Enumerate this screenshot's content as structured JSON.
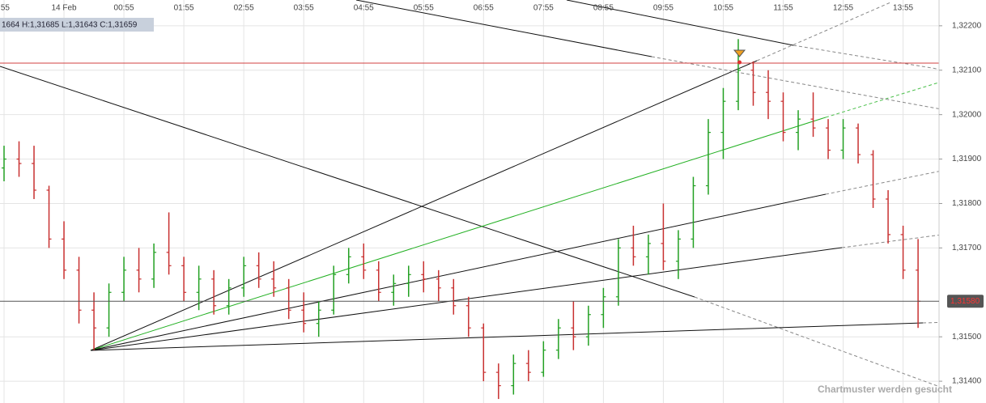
{
  "chart_data": {
    "type": "ohlc",
    "info": "1664  H:1,31685  L:1,31643  C:1,31659",
    "watermark": "Chartmuster werden gesucht",
    "grid": true,
    "up_color": "#22a022",
    "down_color": "#c83030",
    "xlim": [
      -0.27,
      62.4
    ],
    "xticks": [
      {
        "value": 0,
        "label": ":55"
      },
      {
        "value": 4,
        "label": "14 Feb"
      },
      {
        "value": 8,
        "label": "00:55"
      },
      {
        "value": 12,
        "label": "01:55"
      },
      {
        "value": 16,
        "label": "02:55"
      },
      {
        "value": 20,
        "label": "03:55"
      },
      {
        "value": 24,
        "label": "04:55"
      },
      {
        "value": 28,
        "label": "05:55"
      },
      {
        "value": 32,
        "label": "06:55"
      },
      {
        "value": 36,
        "label": "07:55"
      },
      {
        "value": 40,
        "label": "08:55"
      },
      {
        "value": 44,
        "label": "09:55"
      },
      {
        "value": 48,
        "label": "10:55"
      },
      {
        "value": 52,
        "label": "11:55"
      },
      {
        "value": 56,
        "label": "12:55"
      },
      {
        "value": 60,
        "label": "13:55"
      }
    ],
    "ylim": [
      1.31351,
      1.32258
    ],
    "yticks": [
      {
        "value": 1.314,
        "label": "1,31400"
      },
      {
        "value": 1.315,
        "label": "1,31500"
      },
      {
        "value": 1.317,
        "label": "1,31700"
      },
      {
        "value": 1.318,
        "label": "1,31800"
      },
      {
        "value": 1.319,
        "label": "1,31900"
      },
      {
        "value": 1.32,
        "label": "1,32000"
      },
      {
        "value": 1.321,
        "label": "1,32100"
      },
      {
        "value": 1.322,
        "label": "1,32200"
      }
    ],
    "current_price": {
      "value": 1.3158,
      "label": "1,31580"
    },
    "bars": [
      [
        1.3188,
        1.3193,
        1.3185,
        1.319
      ],
      [
        1.319,
        1.3194,
        1.3186,
        1.3189
      ],
      [
        1.3189,
        1.3193,
        1.3181,
        1.3183
      ],
      [
        1.3183,
        1.3184,
        1.317,
        1.3172
      ],
      [
        1.3172,
        1.3176,
        1.3163,
        1.3165
      ],
      [
        1.3165,
        1.3168,
        1.3153,
        1.3156
      ],
      [
        1.3156,
        1.316,
        1.3147,
        1.3152
      ],
      [
        1.3152,
        1.3162,
        1.315,
        1.316
      ],
      [
        1.316,
        1.3168,
        1.3158,
        1.3165
      ],
      [
        1.3165,
        1.317,
        1.316,
        1.3163
      ],
      [
        1.3163,
        1.3171,
        1.3161,
        1.3169
      ],
      [
        1.3169,
        1.3178,
        1.3164,
        1.3166
      ],
      [
        1.3166,
        1.3168,
        1.3158,
        1.316
      ],
      [
        1.316,
        1.3166,
        1.3156,
        1.3163
      ],
      [
        1.3163,
        1.3165,
        1.3155,
        1.3157
      ],
      [
        1.3157,
        1.3163,
        1.3155,
        1.3161
      ],
      [
        1.3161,
        1.3168,
        1.3159,
        1.3166
      ],
      [
        1.3166,
        1.3169,
        1.3161,
        1.3163
      ],
      [
        1.3163,
        1.3167,
        1.3159,
        1.3161
      ],
      [
        1.3161,
        1.3163,
        1.3154,
        1.3156
      ],
      [
        1.3156,
        1.316,
        1.3151,
        1.3153
      ],
      [
        1.3153,
        1.3158,
        1.315,
        1.3156
      ],
      [
        1.3156,
        1.3166,
        1.3155,
        1.3164
      ],
      [
        1.3164,
        1.317,
        1.3162,
        1.3168
      ],
      [
        1.3168,
        1.3171,
        1.3163,
        1.3165
      ],
      [
        1.3165,
        1.3167,
        1.3158,
        1.316
      ],
      [
        1.316,
        1.3164,
        1.3157,
        1.3162
      ],
      [
        1.3162,
        1.3166,
        1.3159,
        1.3164
      ],
      [
        1.3164,
        1.3167,
        1.316,
        1.3163
      ],
      [
        1.3163,
        1.3165,
        1.3158,
        1.3161
      ],
      [
        1.3161,
        1.3163,
        1.3155,
        1.3157
      ],
      [
        1.3157,
        1.3159,
        1.315,
        1.3152
      ],
      [
        1.3152,
        1.3153,
        1.314,
        1.3142
      ],
      [
        1.3142,
        1.3144,
        1.3136,
        1.3139
      ],
      [
        1.3139,
        1.3146,
        1.3137,
        1.3144
      ],
      [
        1.3144,
        1.3147,
        1.314,
        1.3142
      ],
      [
        1.3142,
        1.3149,
        1.3141,
        1.3147
      ],
      [
        1.3147,
        1.3154,
        1.3145,
        1.3152
      ],
      [
        1.3152,
        1.3158,
        1.3147,
        1.315
      ],
      [
        1.315,
        1.3157,
        1.3148,
        1.3155
      ],
      [
        1.3155,
        1.3161,
        1.3152,
        1.3159
      ],
      [
        1.3159,
        1.3172,
        1.3157,
        1.317
      ],
      [
        1.317,
        1.3175,
        1.3166,
        1.3168
      ],
      [
        1.3168,
        1.3173,
        1.3164,
        1.3171
      ],
      [
        1.3171,
        1.318,
        1.3165,
        1.3167
      ],
      [
        1.3167,
        1.3174,
        1.3163,
        1.3172
      ],
      [
        1.3172,
        1.3186,
        1.317,
        1.3184
      ],
      [
        1.3184,
        1.3199,
        1.3182,
        1.3196
      ],
      [
        1.3196,
        1.3206,
        1.319,
        1.3203
      ],
      [
        1.3203,
        1.3217,
        1.3201,
        1.321
      ],
      [
        1.321,
        1.3212,
        1.3202,
        1.3205
      ],
      [
        1.3205,
        1.321,
        1.3199,
        1.3203
      ],
      [
        1.3203,
        1.3205,
        1.3194,
        1.3196
      ],
      [
        1.3196,
        1.3201,
        1.3192,
        1.3199
      ],
      [
        1.3199,
        1.3205,
        1.3195,
        1.3197
      ],
      [
        1.3197,
        1.3199,
        1.319,
        1.3192
      ],
      [
        1.3192,
        1.3199,
        1.319,
        1.3197
      ],
      [
        1.3197,
        1.3198,
        1.3189,
        1.3191
      ],
      [
        1.3191,
        1.3192,
        1.3179,
        1.3181
      ],
      [
        1.3181,
        1.3183,
        1.3171,
        1.3173
      ],
      [
        1.3173,
        1.3175,
        1.3163,
        1.3165
      ],
      [
        1.3165,
        1.3172,
        1.3152,
        1.3158
      ]
    ]
  }
}
